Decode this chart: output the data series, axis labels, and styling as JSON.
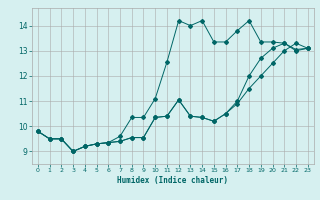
{
  "xlabel": "Humidex (Indice chaleur)",
  "background_color": "#d6f0f0",
  "line_color": "#006666",
  "grid_color": "#aaaaaa",
  "xlim": [
    -0.5,
    23.5
  ],
  "ylim": [
    8.5,
    14.7
  ],
  "xticks": [
    0,
    1,
    2,
    3,
    4,
    5,
    6,
    7,
    8,
    9,
    10,
    11,
    12,
    13,
    14,
    15,
    16,
    17,
    18,
    19,
    20,
    21,
    22,
    23
  ],
  "yticks": [
    9,
    10,
    11,
    12,
    13,
    14
  ],
  "line1_x": [
    0,
    1,
    2,
    3,
    4,
    5,
    6,
    7,
    8,
    9,
    10,
    11,
    12,
    13,
    14,
    15,
    16,
    17,
    18,
    19,
    20,
    21,
    22,
    23
  ],
  "line1_y": [
    9.8,
    9.5,
    9.5,
    9.0,
    9.2,
    9.3,
    9.35,
    9.4,
    9.55,
    9.55,
    10.35,
    10.4,
    11.05,
    10.4,
    10.35,
    10.2,
    10.5,
    10.9,
    11.5,
    12.0,
    12.5,
    13.0,
    13.3,
    13.1
  ],
  "line2_x": [
    0,
    1,
    2,
    3,
    4,
    5,
    6,
    7,
    8,
    9,
    10,
    11,
    12,
    13,
    14,
    15,
    16,
    17,
    18,
    19,
    20,
    21,
    22,
    23
  ],
  "line2_y": [
    9.8,
    9.5,
    9.5,
    9.0,
    9.2,
    9.3,
    9.35,
    9.6,
    10.35,
    10.35,
    11.1,
    12.55,
    14.2,
    14.0,
    14.2,
    13.35,
    13.35,
    13.8,
    14.2,
    13.35,
    13.35,
    13.3,
    13.05,
    13.1
  ],
  "line3_x": [
    0,
    1,
    2,
    3,
    4,
    5,
    6,
    7,
    8,
    9,
    10,
    11,
    12,
    13,
    14,
    15,
    16,
    17,
    18,
    19,
    20,
    21,
    22,
    23
  ],
  "line3_y": [
    9.8,
    9.5,
    9.5,
    9.0,
    9.2,
    9.3,
    9.35,
    9.4,
    9.55,
    9.55,
    10.35,
    10.4,
    11.05,
    10.4,
    10.35,
    10.2,
    10.5,
    11.0,
    12.0,
    12.7,
    13.1,
    13.3,
    13.0,
    13.1
  ]
}
